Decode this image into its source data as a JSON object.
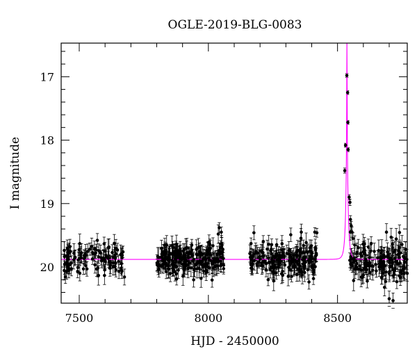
{
  "chart_data": {
    "type": "scatter",
    "title": "OGLE-2019-BLG-0083",
    "xlabel": "HJD - 2450000",
    "ylabel": "I magnitude",
    "xlim": [
      7430,
      8770
    ],
    "ylim": [
      20.57,
      16.47
    ],
    "y_inverted": true,
    "x_ticks": [
      7500,
      8000,
      8500
    ],
    "y_ticks": [
      17,
      18,
      19,
      20
    ],
    "x_minor_step": 100,
    "y_minor_step": 0.2,
    "colors": {
      "data": "#000000",
      "model": "#ff00ff"
    },
    "series": [
      {
        "kind": "data-with-errorbars",
        "segments": [
          {
            "x_start": 7440,
            "x_end": 7680,
            "count": 110,
            "baseline": 19.88,
            "scatter": 0.13,
            "err": 0.12
          },
          {
            "x_start": 7800,
            "x_end": 8060,
            "count": 230,
            "baseline": 19.88,
            "scatter": 0.13,
            "err": 0.12
          },
          {
            "x_start": 8160,
            "x_end": 8420,
            "count": 190,
            "baseline": 19.88,
            "scatter": 0.13,
            "err": 0.12
          },
          {
            "x_start": 8545,
            "x_end": 8770,
            "count": 150,
            "baseline": 19.92,
            "scatter": 0.15,
            "err": 0.13
          }
        ],
        "extra_points": [
          {
            "x": 8042,
            "y": 19.38,
            "err": 0.08
          },
          {
            "x": 8050,
            "y": 19.45,
            "err": 0.08
          },
          {
            "x": 8412,
            "y": 19.45,
            "err": 0.07
          },
          {
            "x": 8420,
            "y": 19.46,
            "err": 0.07
          },
          {
            "x": 8528,
            "y": 18.48,
            "err": 0.04
          },
          {
            "x": 8531,
            "y": 18.08,
            "err": 0.03
          },
          {
            "x": 8536,
            "y": 16.98,
            "err": 0.03
          },
          {
            "x": 8539,
            "y": 17.25,
            "err": 0.03
          },
          {
            "x": 8540,
            "y": 17.72,
            "err": 0.03
          },
          {
            "x": 8541,
            "y": 18.15,
            "err": 0.03
          },
          {
            "x": 8545,
            "y": 18.9,
            "err": 0.04
          },
          {
            "x": 8548,
            "y": 18.98,
            "err": 0.05
          },
          {
            "x": 8550,
            "y": 19.25,
            "err": 0.06
          },
          {
            "x": 8553,
            "y": 19.35,
            "err": 0.07
          },
          {
            "x": 8556,
            "y": 19.45,
            "err": 0.08
          },
          {
            "x": 8560,
            "y": 19.55,
            "err": 0.09
          },
          {
            "x": 8700,
            "y": 20.5,
            "err": 0.12
          },
          {
            "x": 8715,
            "y": 20.53,
            "err": 0.12
          }
        ]
      },
      {
        "kind": "model",
        "baseline": 19.88,
        "t0": 8536.5,
        "tE": 9.5,
        "u0": 0.0345
      }
    ]
  }
}
